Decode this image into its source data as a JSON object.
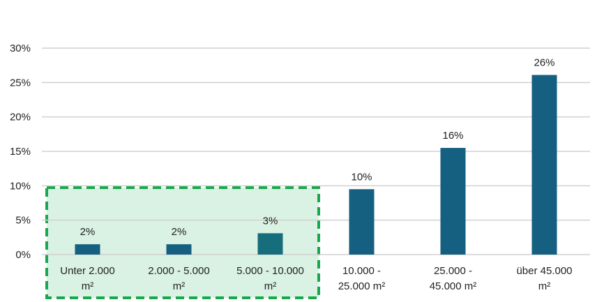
{
  "chart_data": {
    "type": "bar",
    "categories": [
      [
        "Unter 2.000",
        "m²"
      ],
      [
        "2.000 - 5.000",
        "m²"
      ],
      [
        "5.000 - 10.000",
        "m²"
      ],
      [
        "10.000 -",
        "25.000 m²"
      ],
      [
        "25.000 -",
        "45.000 m²"
      ],
      [
        "über 45.000",
        "m²"
      ]
    ],
    "values": [
      0.015,
      0.015,
      0.031,
      0.095,
      0.155,
      0.261
    ],
    "data_labels": [
      "2%",
      "2%",
      "3%",
      "10%",
      "16%",
      "26%"
    ],
    "yticks": [
      0,
      0.05,
      0.1,
      0.15,
      0.2,
      0.25,
      0.3
    ],
    "ytick_labels": [
      "0%",
      "5%",
      "10%",
      "15%",
      "20%",
      "25%",
      "30%"
    ],
    "ylim": [
      0,
      0.3
    ],
    "grid": true,
    "colors": {
      "bar": "#155f80",
      "bar_highlight": "#166d7c",
      "grid": "#d0d0d0",
      "highlight_fill": "#d9f2e3",
      "highlight_border": "#18a84c"
    },
    "highlight_range": [
      0,
      2
    ]
  }
}
